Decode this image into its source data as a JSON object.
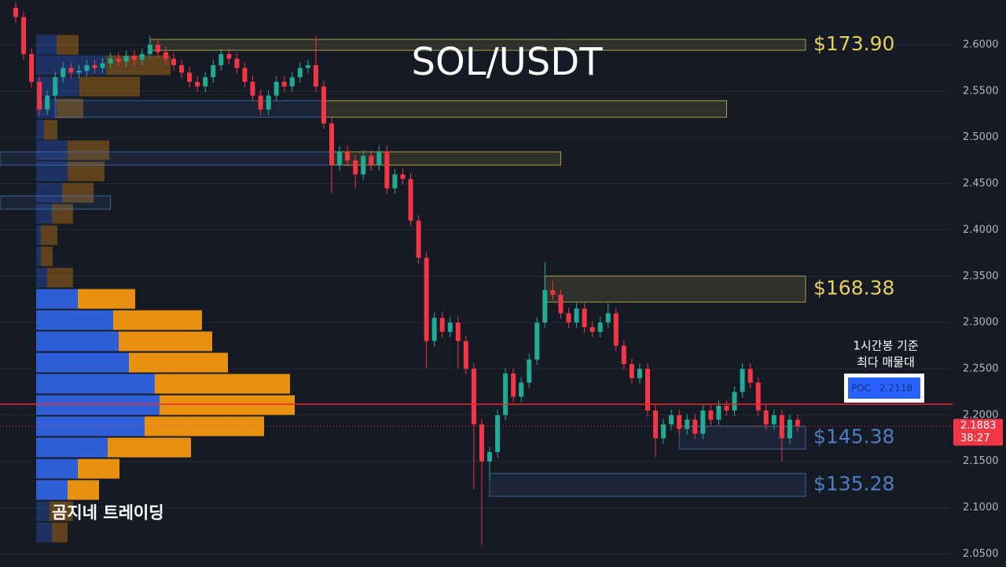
{
  "chart_data": {
    "type": "candlestick",
    "title": "SOL/USDT",
    "ylim": [
      2.0359,
      2.6484
    ],
    "yticks": [
      {
        "value": 2.05,
        "label": "2.0500"
      },
      {
        "value": 2.1,
        "label": "2.1000"
      },
      {
        "value": 2.15,
        "label": "2.1500"
      },
      {
        "value": 2.2,
        "label": "2.2000"
      },
      {
        "value": 2.25,
        "label": "2.2500"
      },
      {
        "value": 2.3,
        "label": "2.3000"
      },
      {
        "value": 2.35,
        "label": "2.3500"
      },
      {
        "value": 2.4,
        "label": "2.4000"
      },
      {
        "value": 2.45,
        "label": "2.4500"
      },
      {
        "value": 2.5,
        "label": "2.5000"
      },
      {
        "value": 2.55,
        "label": "2.5500"
      },
      {
        "value": 2.6,
        "label": "2.6000"
      }
    ],
    "grid": true,
    "up_color": "#22ab94",
    "down_color": "#f23645",
    "open": [
      2.64,
      2.63,
      2.59,
      2.56,
      2.53,
      2.545,
      2.565,
      2.575,
      2.57,
      2.572,
      2.578,
      2.575,
      2.58,
      2.585,
      2.582,
      2.588,
      2.584,
      2.59,
      2.6,
      2.592,
      2.585,
      2.578,
      2.57,
      2.56,
      2.555,
      2.565,
      2.578,
      2.59,
      2.585,
      2.575,
      2.56,
      2.545,
      2.53,
      2.545,
      2.56,
      2.555,
      2.565,
      2.575,
      2.578,
      2.555,
      2.515,
      2.47,
      2.485,
      2.475,
      2.46,
      2.48,
      2.47,
      2.485,
      2.445,
      2.46,
      2.455,
      2.41,
      2.37,
      2.28,
      2.305,
      2.29,
      2.3,
      2.28,
      2.25,
      2.19,
      2.15,
      2.16,
      2.2,
      2.245,
      2.22,
      2.235,
      2.26,
      2.3,
      2.335,
      2.33,
      2.31,
      2.3,
      2.315,
      2.295,
      2.29,
      2.3,
      2.31,
      2.275,
      2.255,
      2.24,
      2.25,
      2.205,
      2.175,
      2.19,
      2.2,
      2.185,
      2.195,
      2.18,
      2.205,
      2.195,
      2.21,
      2.205,
      2.225,
      2.25,
      2.235,
      2.205,
      2.19,
      2.2,
      2.175,
      2.195
    ],
    "high": [
      2.646,
      2.636,
      2.596,
      2.566,
      2.551,
      2.571,
      2.581,
      2.581,
      2.578,
      2.584,
      2.584,
      2.586,
      2.591,
      2.591,
      2.594,
      2.594,
      2.596,
      2.61,
      2.606,
      2.598,
      2.591,
      2.584,
      2.576,
      2.566,
      2.571,
      2.584,
      2.596,
      2.596,
      2.591,
      2.581,
      2.566,
      2.551,
      2.551,
      2.566,
      2.566,
      2.571,
      2.581,
      2.584,
      2.61,
      2.561,
      2.521,
      2.491,
      2.491,
      2.481,
      2.486,
      2.486,
      2.491,
      2.491,
      2.466,
      2.466,
      2.461,
      2.416,
      2.376,
      2.311,
      2.311,
      2.306,
      2.306,
      2.286,
      2.256,
      2.196,
      2.166,
      2.206,
      2.251,
      2.251,
      2.241,
      2.266,
      2.306,
      2.365,
      2.345,
      2.336,
      2.316,
      2.321,
      2.321,
      2.301,
      2.306,
      2.321,
      2.316,
      2.281,
      2.261,
      2.256,
      2.256,
      2.211,
      2.196,
      2.206,
      2.206,
      2.201,
      2.201,
      2.211,
      2.211,
      2.216,
      2.216,
      2.231,
      2.256,
      2.256,
      2.241,
      2.211,
      2.206,
      2.206,
      2.201,
      2.201
    ],
    "low": [
      2.624,
      2.584,
      2.554,
      2.524,
      2.524,
      2.539,
      2.559,
      2.564,
      2.564,
      2.566,
      2.569,
      2.569,
      2.574,
      2.576,
      2.576,
      2.578,
      2.578,
      2.584,
      2.586,
      2.579,
      2.572,
      2.564,
      2.554,
      2.549,
      2.549,
      2.559,
      2.572,
      2.579,
      2.569,
      2.554,
      2.539,
      2.524,
      2.524,
      2.539,
      2.549,
      2.549,
      2.559,
      2.569,
      2.549,
      2.509,
      2.44,
      2.464,
      2.469,
      2.445,
      2.454,
      2.464,
      2.464,
      2.439,
      2.439,
      2.449,
      2.404,
      2.364,
      2.25,
      2.274,
      2.284,
      2.284,
      2.25,
      2.244,
      2.12,
      2.06,
      2.13,
      2.154,
      2.194,
      2.214,
      2.214,
      2.229,
      2.254,
      2.294,
      2.324,
      2.304,
      2.294,
      2.294,
      2.289,
      2.284,
      2.284,
      2.294,
      2.269,
      2.249,
      2.234,
      2.234,
      2.199,
      2.155,
      2.169,
      2.184,
      2.179,
      2.179,
      2.174,
      2.174,
      2.189,
      2.189,
      2.199,
      2.199,
      2.219,
      2.229,
      2.199,
      2.184,
      2.184,
      2.15,
      2.169,
      2.182
    ],
    "close": [
      2.63,
      2.59,
      2.56,
      2.53,
      2.545,
      2.565,
      2.575,
      2.57,
      2.572,
      2.578,
      2.575,
      2.58,
      2.585,
      2.582,
      2.588,
      2.584,
      2.59,
      2.6,
      2.592,
      2.585,
      2.578,
      2.57,
      2.56,
      2.555,
      2.565,
      2.578,
      2.59,
      2.585,
      2.575,
      2.56,
      2.545,
      2.53,
      2.545,
      2.56,
      2.555,
      2.565,
      2.575,
      2.578,
      2.555,
      2.515,
      2.47,
      2.485,
      2.475,
      2.46,
      2.48,
      2.47,
      2.485,
      2.445,
      2.46,
      2.455,
      2.41,
      2.37,
      2.28,
      2.305,
      2.29,
      2.3,
      2.28,
      2.25,
      2.19,
      2.15,
      2.16,
      2.2,
      2.245,
      2.22,
      2.235,
      2.26,
      2.3,
      2.335,
      2.33,
      2.31,
      2.3,
      2.315,
      2.295,
      2.29,
      2.3,
      2.31,
      2.275,
      2.255,
      2.24,
      2.25,
      2.205,
      2.175,
      2.19,
      2.2,
      2.185,
      2.195,
      2.18,
      2.205,
      2.195,
      2.21,
      2.205,
      2.225,
      2.25,
      2.235,
      2.205,
      2.19,
      2.2,
      2.175,
      2.195,
      2.1883
    ],
    "zones": [
      {
        "label": "$173.90",
        "low": 2.594,
        "high": 2.6059,
        "from": 17,
        "to": 100,
        "color": "#e6d25a"
      },
      {
        "low": 2.5218,
        "high": 2.5397,
        "from": 5,
        "to": 39,
        "color": "#4a7fc1"
      },
      {
        "low": 2.5218,
        "high": 2.5397,
        "from": 39,
        "to": 90,
        "color": "#e6d25a"
      },
      {
        "low": 2.47,
        "high": 2.4844,
        "from": -2,
        "to": 40,
        "color": "#4a7fc1"
      },
      {
        "low": 2.47,
        "high": 2.4844,
        "from": 40,
        "to": 69,
        "color": "#e6d25a"
      },
      {
        "low": 2.4224,
        "high": 2.4368,
        "from": -2,
        "to": 12,
        "color": "#4a7fc1"
      },
      {
        "label": "$168.38",
        "low": 2.3221,
        "high": 2.3502,
        "from": 67,
        "to": 100,
        "color": "#e6d25a"
      },
      {
        "label": "$145.38",
        "low": 2.1633,
        "high": 2.1879,
        "from": 84,
        "to": 100,
        "color": "#4a7fc1"
      },
      {
        "label": "$135.28",
        "low": 2.1123,
        "high": 2.1369,
        "from": 60,
        "to": 100,
        "color": "#4a7fc1"
      }
    ],
    "volume_profile": {
      "buy_color": "#2f5fd8",
      "sell_color": "#e8900f",
      "value_area": [
        2.108,
        2.337
      ],
      "rows": [
        {
          "price": 2.6,
          "buy": 26,
          "sell": 28
        },
        {
          "price": 2.5779,
          "buy": 89,
          "sell": 82
        },
        {
          "price": 2.5549,
          "buy": 55,
          "sell": 77
        },
        {
          "price": 2.5312,
          "buy": 26,
          "sell": 34
        },
        {
          "price": 2.5082,
          "buy": 10,
          "sell": 17
        },
        {
          "price": 2.4861,
          "buy": 40,
          "sell": 53
        },
        {
          "price": 2.4632,
          "buy": 40,
          "sell": 47
        },
        {
          "price": 2.4402,
          "buy": 33,
          "sell": 40
        },
        {
          "price": 2.4173,
          "buy": 20,
          "sell": 27
        },
        {
          "price": 2.3944,
          "buy": 6,
          "sell": 21
        },
        {
          "price": 2.3714,
          "buy": 6,
          "sell": 15
        },
        {
          "price": 2.3485,
          "buy": 14,
          "sell": 33
        },
        {
          "price": 2.3255,
          "buy": 53,
          "sell": 73
        },
        {
          "price": 2.3026,
          "buy": 98,
          "sell": 113
        },
        {
          "price": 2.2797,
          "buy": 105,
          "sell": 119
        },
        {
          "price": 2.2567,
          "buy": 118,
          "sell": 126
        },
        {
          "price": 2.2338,
          "buy": 151,
          "sell": 172
        },
        {
          "price": 2.2108,
          "buy": 157,
          "sell": 172
        },
        {
          "price": 2.1879,
          "buy": 138,
          "sell": 152
        },
        {
          "price": 2.165,
          "buy": 91,
          "sell": 106
        },
        {
          "price": 2.142,
          "buy": 53,
          "sell": 53
        },
        {
          "price": 2.1191,
          "buy": 40,
          "sell": 40
        },
        {
          "price": 2.0962,
          "buy": 17,
          "sell": 30
        },
        {
          "price": 2.0732,
          "buy": 20,
          "sell": 20
        }
      ]
    },
    "poc": {
      "label": "POC",
      "value": 2.2118
    },
    "annotation": [
      "1시간봉 기준",
      "최다 매물대"
    ],
    "last_price": 2.1883,
    "countdown": "38:27",
    "watermark": "곰지네 트레이딩"
  }
}
